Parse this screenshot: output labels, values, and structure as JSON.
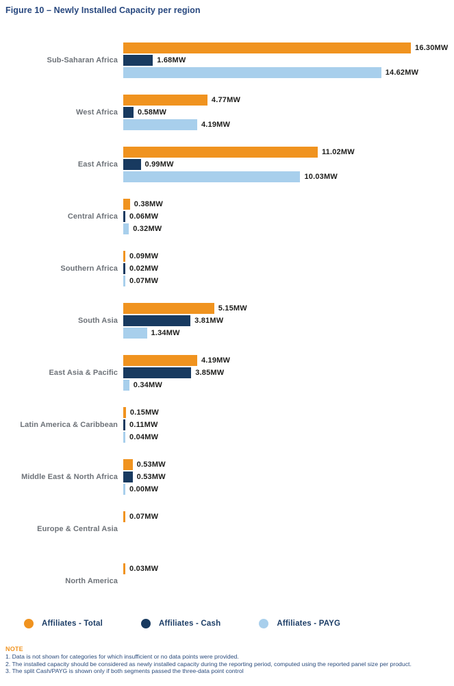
{
  "title": "Figure 10 – Newly Installed Capacity per region",
  "colors": {
    "total": "#F0931F",
    "cash": "#183A60",
    "payg": "#A8CFEC",
    "title_text": "#27477E",
    "region_label": "#6D7278",
    "value_label": "#1D1D1B",
    "legend_text": "#1C3D66",
    "note_heading": "#F0931F",
    "note_text": "#2A4B7C"
  },
  "chart_data": {
    "type": "bar",
    "orientation": "horizontal",
    "unit": "MW",
    "xmax": 16.3,
    "grid": false,
    "legend_position": "bottom",
    "categories": [
      "Sub-Saharan Africa",
      "West Africa",
      "East Africa",
      "Central Africa",
      "Southern Africa",
      "South Asia",
      "East Asia & Pacific",
      "Latin America & Caribbean",
      "Middle East & North Africa",
      "Europe & Central Asia",
      "North America"
    ],
    "series": [
      {
        "name": "Affiliates - Total",
        "key": "total",
        "values": [
          16.3,
          4.77,
          11.02,
          0.38,
          0.09,
          5.15,
          4.19,
          0.15,
          0.53,
          0.07,
          0.03
        ]
      },
      {
        "name": "Affiliates - Cash",
        "key": "cash",
        "values": [
          1.68,
          0.58,
          0.99,
          0.06,
          0.02,
          3.81,
          3.85,
          0.11,
          0.53,
          null,
          null
        ]
      },
      {
        "name": "Affiliates - PAYG",
        "key": "payg",
        "values": [
          14.62,
          4.19,
          10.03,
          0.32,
          0.07,
          1.34,
          0.34,
          0.04,
          0.0,
          null,
          null
        ]
      }
    ]
  },
  "legend": [
    {
      "label": "Affiliates - Total",
      "key": "total"
    },
    {
      "label": "Affiliates - Cash",
      "key": "cash"
    },
    {
      "label": "Affiliates - PAYG",
      "key": "payg"
    }
  ],
  "notes": {
    "heading": "NOTE",
    "items": [
      "1. Data is not shown for categories for which insufficient or no data points were provided.",
      "2. The installed capacity should be considered as newly installed capacity during the reporting period, computed using the reported panel size per product.",
      "3. The split Cash/PAYG is shown only if both segments passed the three-data point control"
    ]
  }
}
